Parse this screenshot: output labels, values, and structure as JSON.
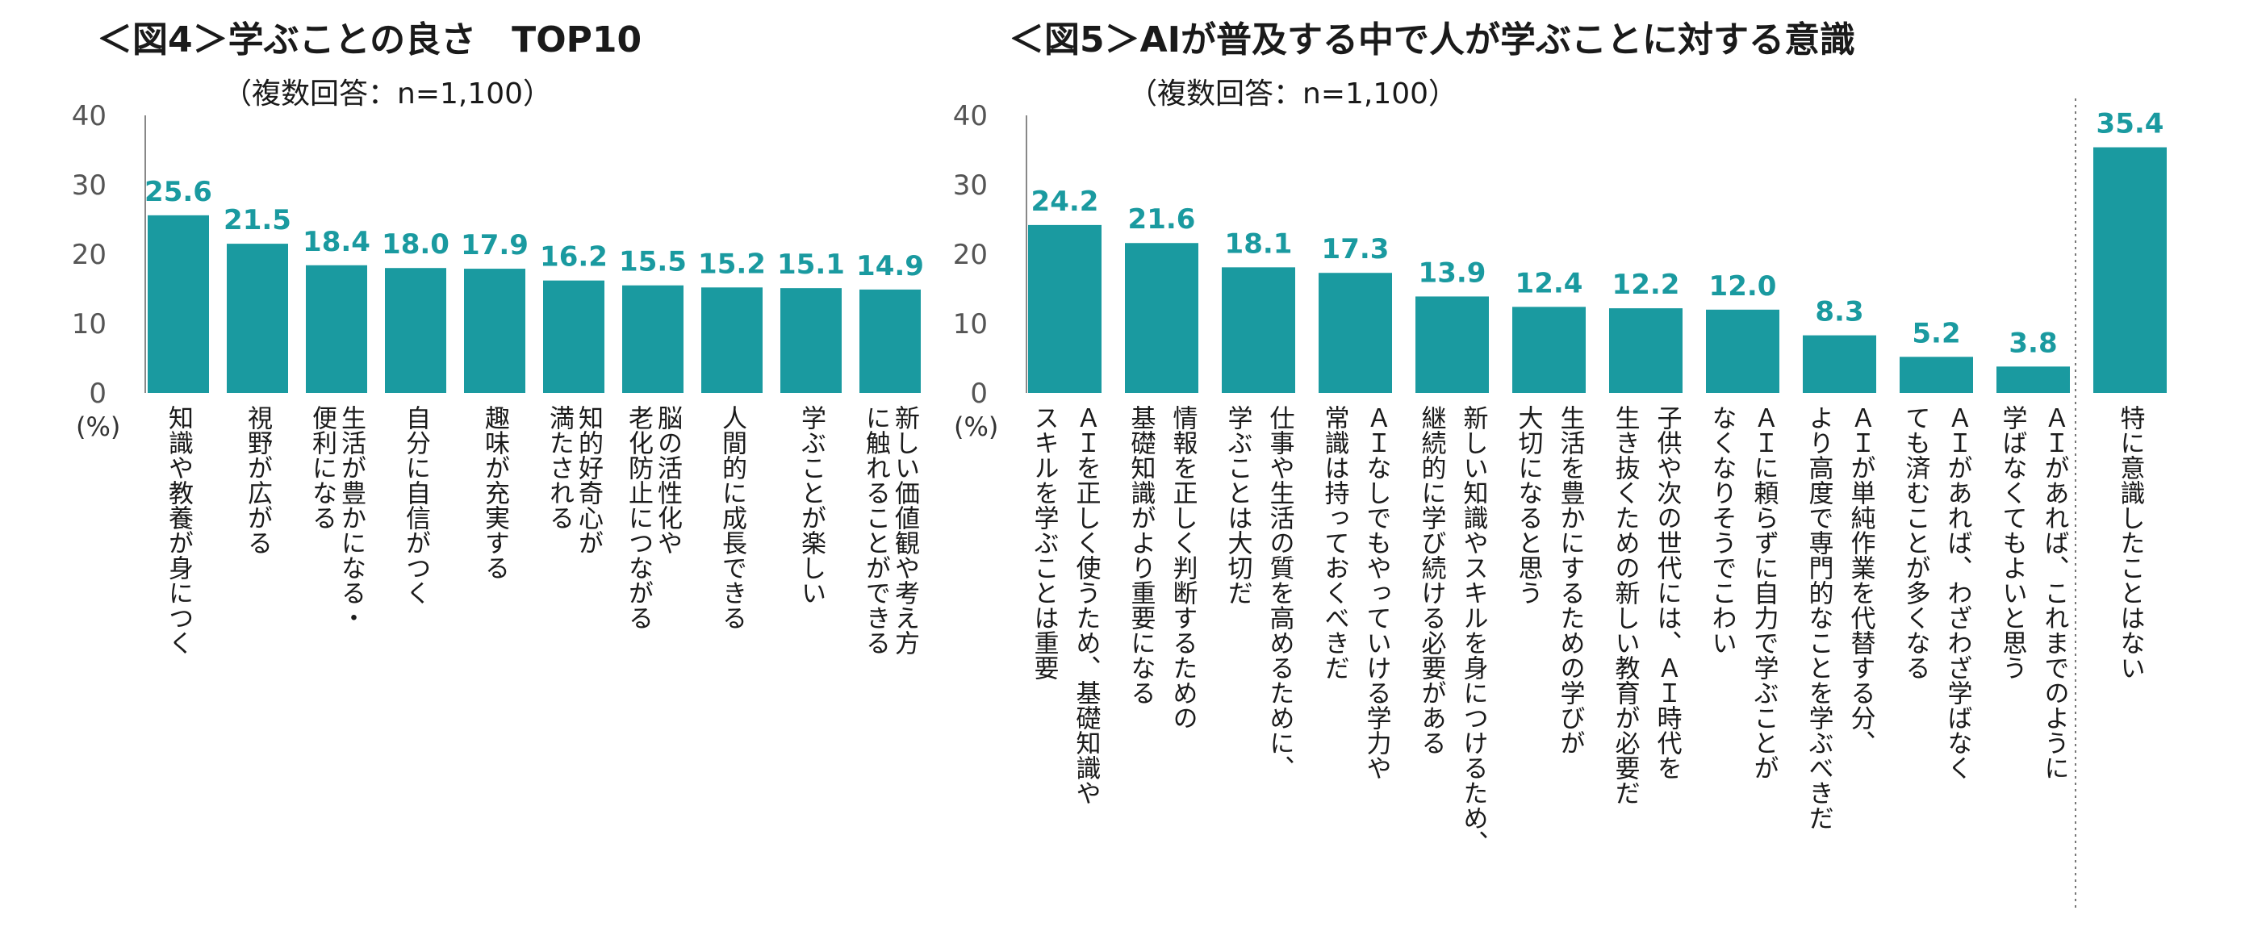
{
  "colors": {
    "bar": "#1a9aa0",
    "value_label": "#1a9aa0",
    "axis": "#888888",
    "text": "#1a1a1a"
  },
  "chart_data": [
    {
      "type": "bar",
      "title": "＜図4＞学ぶことの良さ　TOP10",
      "subtitle": "（複数回答：n=1,100）",
      "unit_label": "(%)",
      "ylim": [
        0,
        40
      ],
      "yticks": [
        "0",
        "10",
        "20",
        "30",
        "40"
      ],
      "categories": [
        [
          "知識や教養が身につく"
        ],
        [
          "視野が広がる"
        ],
        [
          "生活が豊かになる・",
          "便利になる"
        ],
        [
          "自分に自信がつく"
        ],
        [
          "趣味が充実する"
        ],
        [
          "知的好奇心が",
          "満たされる"
        ],
        [
          "脳の活性化や",
          "老化防止につながる"
        ],
        [
          "人間的に成長できる"
        ],
        [
          "学ぶことが楽しい"
        ],
        [
          "新しい価値観や考え方",
          "に触れることができる"
        ]
      ],
      "values": [
        25.6,
        21.5,
        18.4,
        18.0,
        17.9,
        16.2,
        15.5,
        15.2,
        15.1,
        14.9
      ],
      "value_labels": [
        "25.6",
        "21.5",
        "18.4",
        "18.0",
        "17.9",
        "16.2",
        "15.5",
        "15.2",
        "15.1",
        "14.9"
      ]
    },
    {
      "type": "bar",
      "title": "＜図5＞AIが普及する中で人が学ぶことに対する意識",
      "subtitle": "（複数回答：n=1,100）",
      "unit_label": "(%)",
      "ylim": [
        0,
        40
      ],
      "yticks": [
        "0",
        "10",
        "20",
        "30",
        "40"
      ],
      "categories": [
        [
          "ＡＩを正しく使うため、基礎知識や",
          "スキルを学ぶことは重要"
        ],
        [
          "情報を正しく判断するための",
          "基礎知識がより重要になる"
        ],
        [
          "仕事や生活の質を高めるために、",
          "学ぶことは大切だ"
        ],
        [
          "ＡＩなしでもやっていける学力や",
          "常識は持っておくべきだ"
        ],
        [
          "新しい知識やスキルを身につけるため、",
          "継続的に学び続ける必要がある"
        ],
        [
          "生活を豊かにするための学びが",
          "大切になると思う"
        ],
        [
          "子供や次の世代には、ＡＩ時代を",
          "生き抜くための新しい教育が必要だ"
        ],
        [
          "ＡＩに頼らずに自力で学ぶことが",
          "なくなりそうでこわい"
        ],
        [
          "ＡＩが単純作業を代替する分、",
          "より高度で専門的なことを学ぶべきだ"
        ],
        [
          "ＡＩがあれば、わざわざ学ばなく",
          "ても済むことが多くなる"
        ],
        [
          "ＡＩがあれば、これまでのように",
          "学ばなくてもよいと思う"
        ],
        [
          "特に意識したことはない"
        ]
      ],
      "values": [
        24.2,
        21.6,
        18.1,
        17.3,
        13.9,
        12.4,
        12.2,
        12.0,
        8.3,
        5.2,
        3.8,
        35.4
      ],
      "value_labels": [
        "24.2",
        "21.6",
        "18.1",
        "17.3",
        "13.9",
        "12.4",
        "12.2",
        "12.0",
        "8.3",
        "5.2",
        "3.8",
        "35.4"
      ]
    }
  ]
}
